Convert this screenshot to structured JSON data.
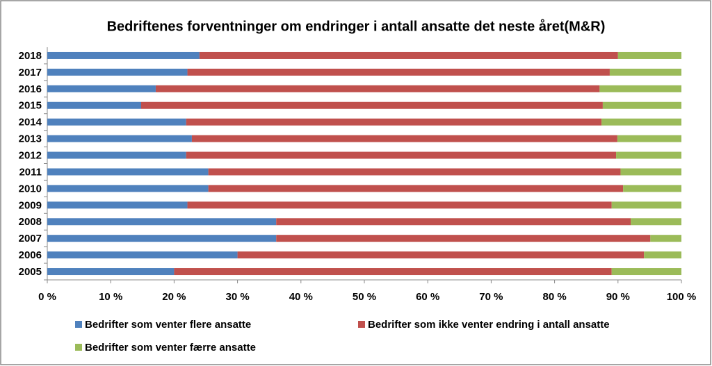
{
  "chart_data": {
    "type": "stacked-bar-horizontal",
    "title": "Bedriftenes forventninger om endringer i antall ansatte det neste året(M&R)",
    "categories": [
      "2005",
      "2006",
      "2007",
      "2008",
      "2009",
      "2010",
      "2011",
      "2012",
      "2013",
      "2014",
      "2015",
      "2016",
      "2017",
      "2018"
    ],
    "series": [
      {
        "name": "Bedrifter som venter flere ansatte",
        "color": "#4f81bd",
        "values": [
          20.0,
          30.0,
          36.1,
          36.1,
          22.1,
          25.4,
          25.4,
          21.9,
          22.8,
          21.9,
          14.8,
          17.1,
          22.1,
          24.0
        ]
      },
      {
        "name": "Bedrifter som ikke venter endring i antall ansatte",
        "color": "#c0504d",
        "values": [
          69.0,
          64.1,
          59.0,
          55.9,
          66.9,
          65.4,
          65.0,
          67.8,
          67.1,
          65.5,
          72.8,
          70.0,
          66.6,
          66.0
        ]
      },
      {
        "name": "Bedrifter som venter færre ansatte",
        "color": "#9bbb59",
        "values": [
          11.0,
          5.9,
          4.9,
          8.0,
          11.0,
          9.2,
          9.6,
          10.3,
          10.1,
          12.6,
          12.4,
          12.9,
          11.3,
          10.0
        ]
      }
    ],
    "xlim": [
      0,
      100
    ],
    "xticks": [
      {
        "value": 0,
        "label": "0 %"
      },
      {
        "value": 10,
        "label": "10 %"
      },
      {
        "value": 20,
        "label": "20 %"
      },
      {
        "value": 30,
        "label": "30 %"
      },
      {
        "value": 40,
        "label": "40 %"
      },
      {
        "value": 50,
        "label": "50 %"
      },
      {
        "value": 60,
        "label": "60 %"
      },
      {
        "value": 70,
        "label": "70 %"
      },
      {
        "value": 80,
        "label": "80 %"
      },
      {
        "value": 90,
        "label": "90 %"
      },
      {
        "value": 100,
        "label": "100 %"
      }
    ],
    "grid": false
  }
}
